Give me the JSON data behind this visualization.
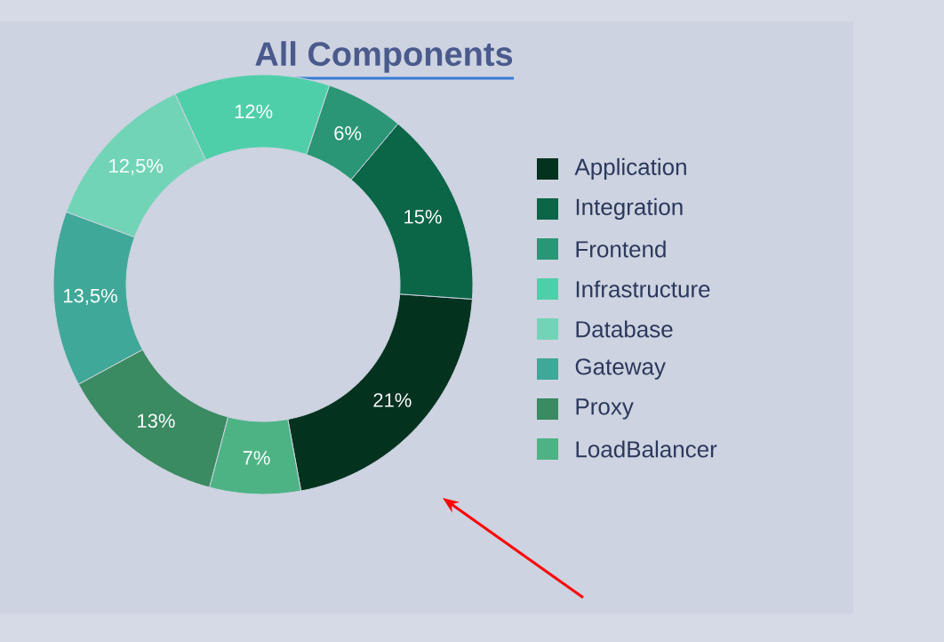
{
  "chart_data": {
    "type": "donut",
    "title": "All Components",
    "categories": [
      "Application",
      "Integration",
      "Frontend",
      "Infrastructure",
      "Database",
      "Gateway",
      "Proxy",
      "LoadBalancer"
    ],
    "values": [
      21,
      15,
      6,
      12,
      12.5,
      13.5,
      13,
      7
    ],
    "value_labels": [
      "21%",
      "15%",
      "6%",
      "12%",
      "12,5%",
      "13,5%",
      "13%",
      "7%"
    ],
    "colors": [
      "#03321f",
      "#0b6547",
      "#2a9676",
      "#4fcfa9",
      "#72d4b6",
      "#40a898",
      "#3a8a62",
      "#4db385"
    ],
    "legend": "right"
  }
}
